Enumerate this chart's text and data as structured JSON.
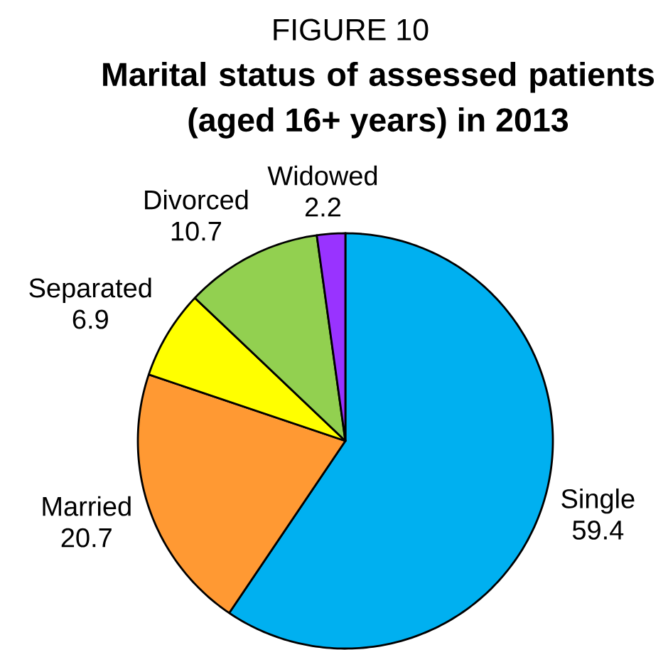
{
  "chart_data": {
    "type": "pie",
    "title": "Marital status of assessed patients (aged 16+ years) in 2013",
    "annotations": [
      "FIGURE 10"
    ],
    "categories": [
      "Single",
      "Married",
      "Separated",
      "Divorced",
      "Widowed"
    ],
    "values": [
      59.4,
      20.7,
      6.9,
      10.7,
      2.2
    ],
    "colors": [
      "#00b0f0",
      "#ff9933",
      "#ffff00",
      "#92d050",
      "#9933ff"
    ],
    "data_labels": true
  }
}
